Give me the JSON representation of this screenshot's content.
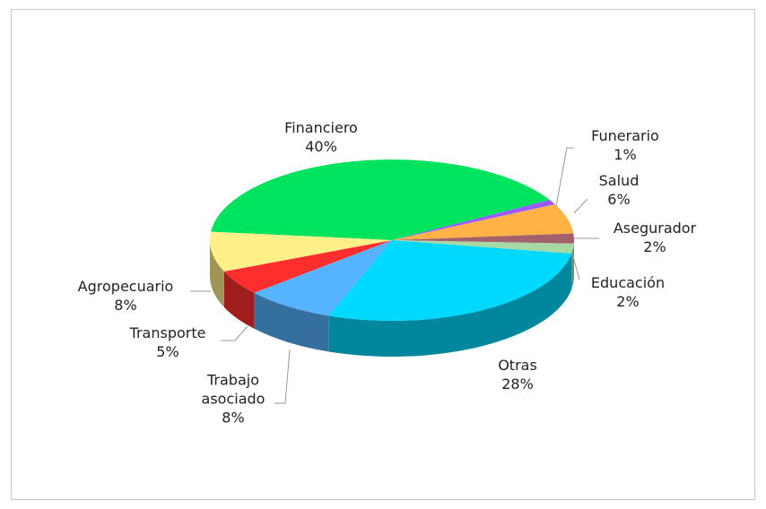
{
  "chart_data": {
    "type": "pie3d",
    "categories": [
      "Financiero",
      "Funerario",
      "Salud",
      "Asegurador",
      "Educación",
      "Otras",
      "Trabajo asociado",
      "Transporte",
      "Agropecuario"
    ],
    "values": [
      40,
      1,
      6,
      2,
      2,
      28,
      8,
      5,
      8
    ],
    "value_labels": [
      "40%",
      "1%",
      "6%",
      "2%",
      "2%",
      "28%",
      "8%",
      "5%",
      "8%"
    ],
    "colors": [
      "#00e35f",
      "#9a5cff",
      "#ffb347",
      "#a3616b",
      "#a9d9a2",
      "#00d9ff",
      "#55b3ff",
      "#ff2e2e",
      "#fff08a"
    ]
  }
}
